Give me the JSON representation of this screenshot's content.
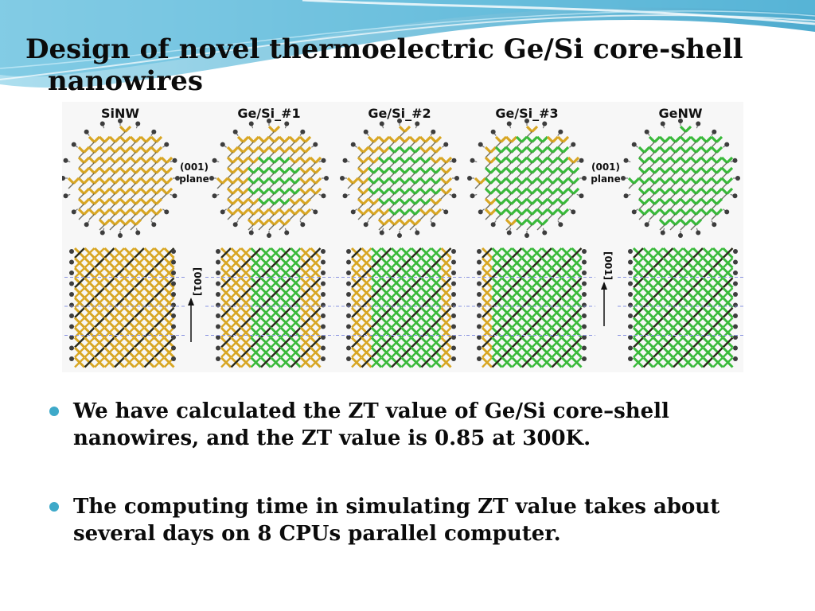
{
  "slide": {
    "title_line1": "Design of novel thermoelectric Ge/Si core-shell",
    "title_line2": "nanowires",
    "accent_color": "#3ea9c9"
  },
  "figure": {
    "panel_labels": [
      "SiNW",
      "Ge/Si_#1",
      "Ge/Si_#2",
      "Ge/Si_#3",
      "GeNW"
    ],
    "plane_label_line1": "(001)",
    "plane_label_line2": "plane",
    "direction_label": "[001]",
    "colors": {
      "si": "#d8a623",
      "ge": "#39b93a",
      "atom": "#3d3d3d",
      "guide": "#8a94e0"
    }
  },
  "bullets": [
    {
      "text": "We have calculated the ZT value of  Ge/Si core–shell nanowires, and the ZT value is 0.85 at 300K."
    },
    {
      "text": "The computing time in simulating ZT value takes about several days on 8 CPUs parallel computer."
    }
  ]
}
